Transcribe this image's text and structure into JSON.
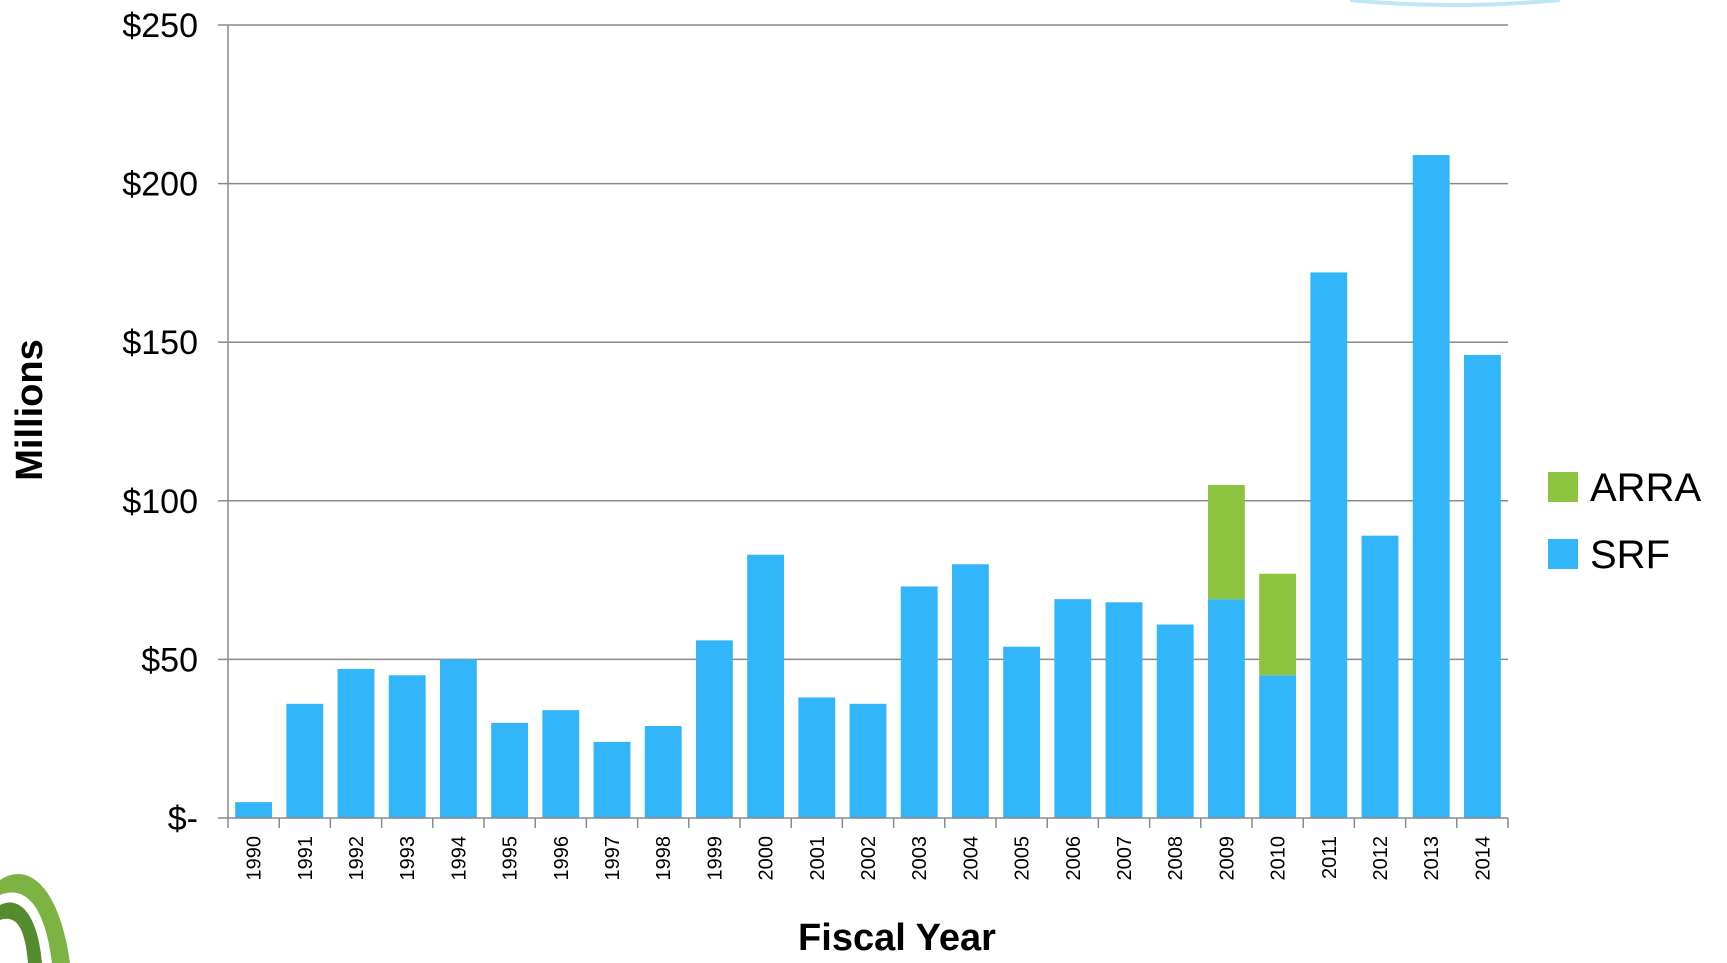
{
  "chart_data": {
    "type": "bar",
    "stacked": true,
    "title": "",
    "xlabel": "Fiscal Year",
    "ylabel": "Millions",
    "ylim": [
      0,
      250
    ],
    "yticks": [
      {
        "value": 0,
        "label": "$-"
      },
      {
        "value": 50,
        "label": "$50"
      },
      {
        "value": 100,
        "label": "$100"
      },
      {
        "value": 150,
        "label": "$150"
      },
      {
        "value": 200,
        "label": "$200"
      },
      {
        "value": 250,
        "label": "$250"
      }
    ],
    "grid": true,
    "legend_position": "right",
    "categories": [
      "1990",
      "1991",
      "1992",
      "1993",
      "1994",
      "1995",
      "1996",
      "1997",
      "1998",
      "1999",
      "2000",
      "2001",
      "2002",
      "2003",
      "2004",
      "2005",
      "2006",
      "2007",
      "2008",
      "2009",
      "2010",
      "2011",
      "2012",
      "2013",
      "2014"
    ],
    "series": [
      {
        "name": "SRF",
        "color": "#33B5F9",
        "values": [
          5,
          36,
          47,
          45,
          50,
          30,
          34,
          24,
          29,
          56,
          83,
          38,
          36,
          73,
          80,
          54,
          69,
          68,
          61,
          69,
          45,
          172,
          89,
          209,
          146
        ]
      },
      {
        "name": "ARRA",
        "color": "#8CC43F",
        "values": [
          0,
          0,
          0,
          0,
          0,
          0,
          0,
          0,
          0,
          0,
          0,
          0,
          0,
          0,
          0,
          0,
          0,
          0,
          0,
          36,
          32,
          0,
          0,
          0,
          0
        ]
      }
    ],
    "legend_order": [
      "ARRA",
      "SRF"
    ]
  }
}
